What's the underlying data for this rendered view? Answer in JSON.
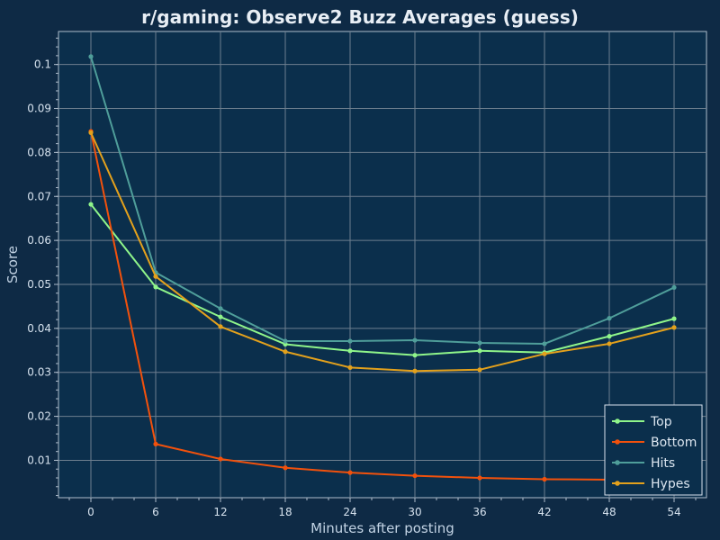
{
  "chart_data": {
    "type": "line",
    "title": "r/gaming: Observe2 Buzz Averages (guess)",
    "xlabel": "Minutes after posting",
    "ylabel": "Score",
    "x": [
      0,
      6,
      12,
      18,
      24,
      30,
      36,
      42,
      48,
      54
    ],
    "xticks": [
      "0",
      "6",
      "12",
      "18",
      "24",
      "30",
      "36",
      "42",
      "48",
      "54"
    ],
    "yticks": [
      "0.01",
      "0.02",
      "0.03",
      "0.04",
      "0.05",
      "0.06",
      "0.07",
      "0.08",
      "0.09",
      "0.1"
    ],
    "xlim": [
      -3,
      57
    ],
    "ylim": [
      0.0015,
      0.1075
    ],
    "grid": true,
    "legend_position": "bottom-right",
    "series": [
      {
        "name": "Top",
        "color": "#8ff58a",
        "values": [
          0.0682,
          0.0494,
          0.0426,
          0.0364,
          0.0349,
          0.0339,
          0.0349,
          0.0345,
          0.0382,
          0.0422
        ]
      },
      {
        "name": "Bottom",
        "color": "#f2510c",
        "values": [
          0.0848,
          0.0137,
          0.0103,
          0.0083,
          0.0072,
          0.0065,
          0.006,
          0.0057,
          0.0056,
          0.0054
        ]
      },
      {
        "name": "Hits",
        "color": "#4f9e9a",
        "values": [
          0.1018,
          0.0527,
          0.0445,
          0.0371,
          0.0371,
          0.0373,
          0.0367,
          0.0365,
          0.0423,
          0.0493
        ]
      },
      {
        "name": "Hypes",
        "color": "#e3a11c",
        "values": [
          0.0845,
          0.0518,
          0.0404,
          0.0347,
          0.0311,
          0.0303,
          0.0306,
          0.0342,
          0.0365,
          0.0402
        ]
      }
    ]
  }
}
